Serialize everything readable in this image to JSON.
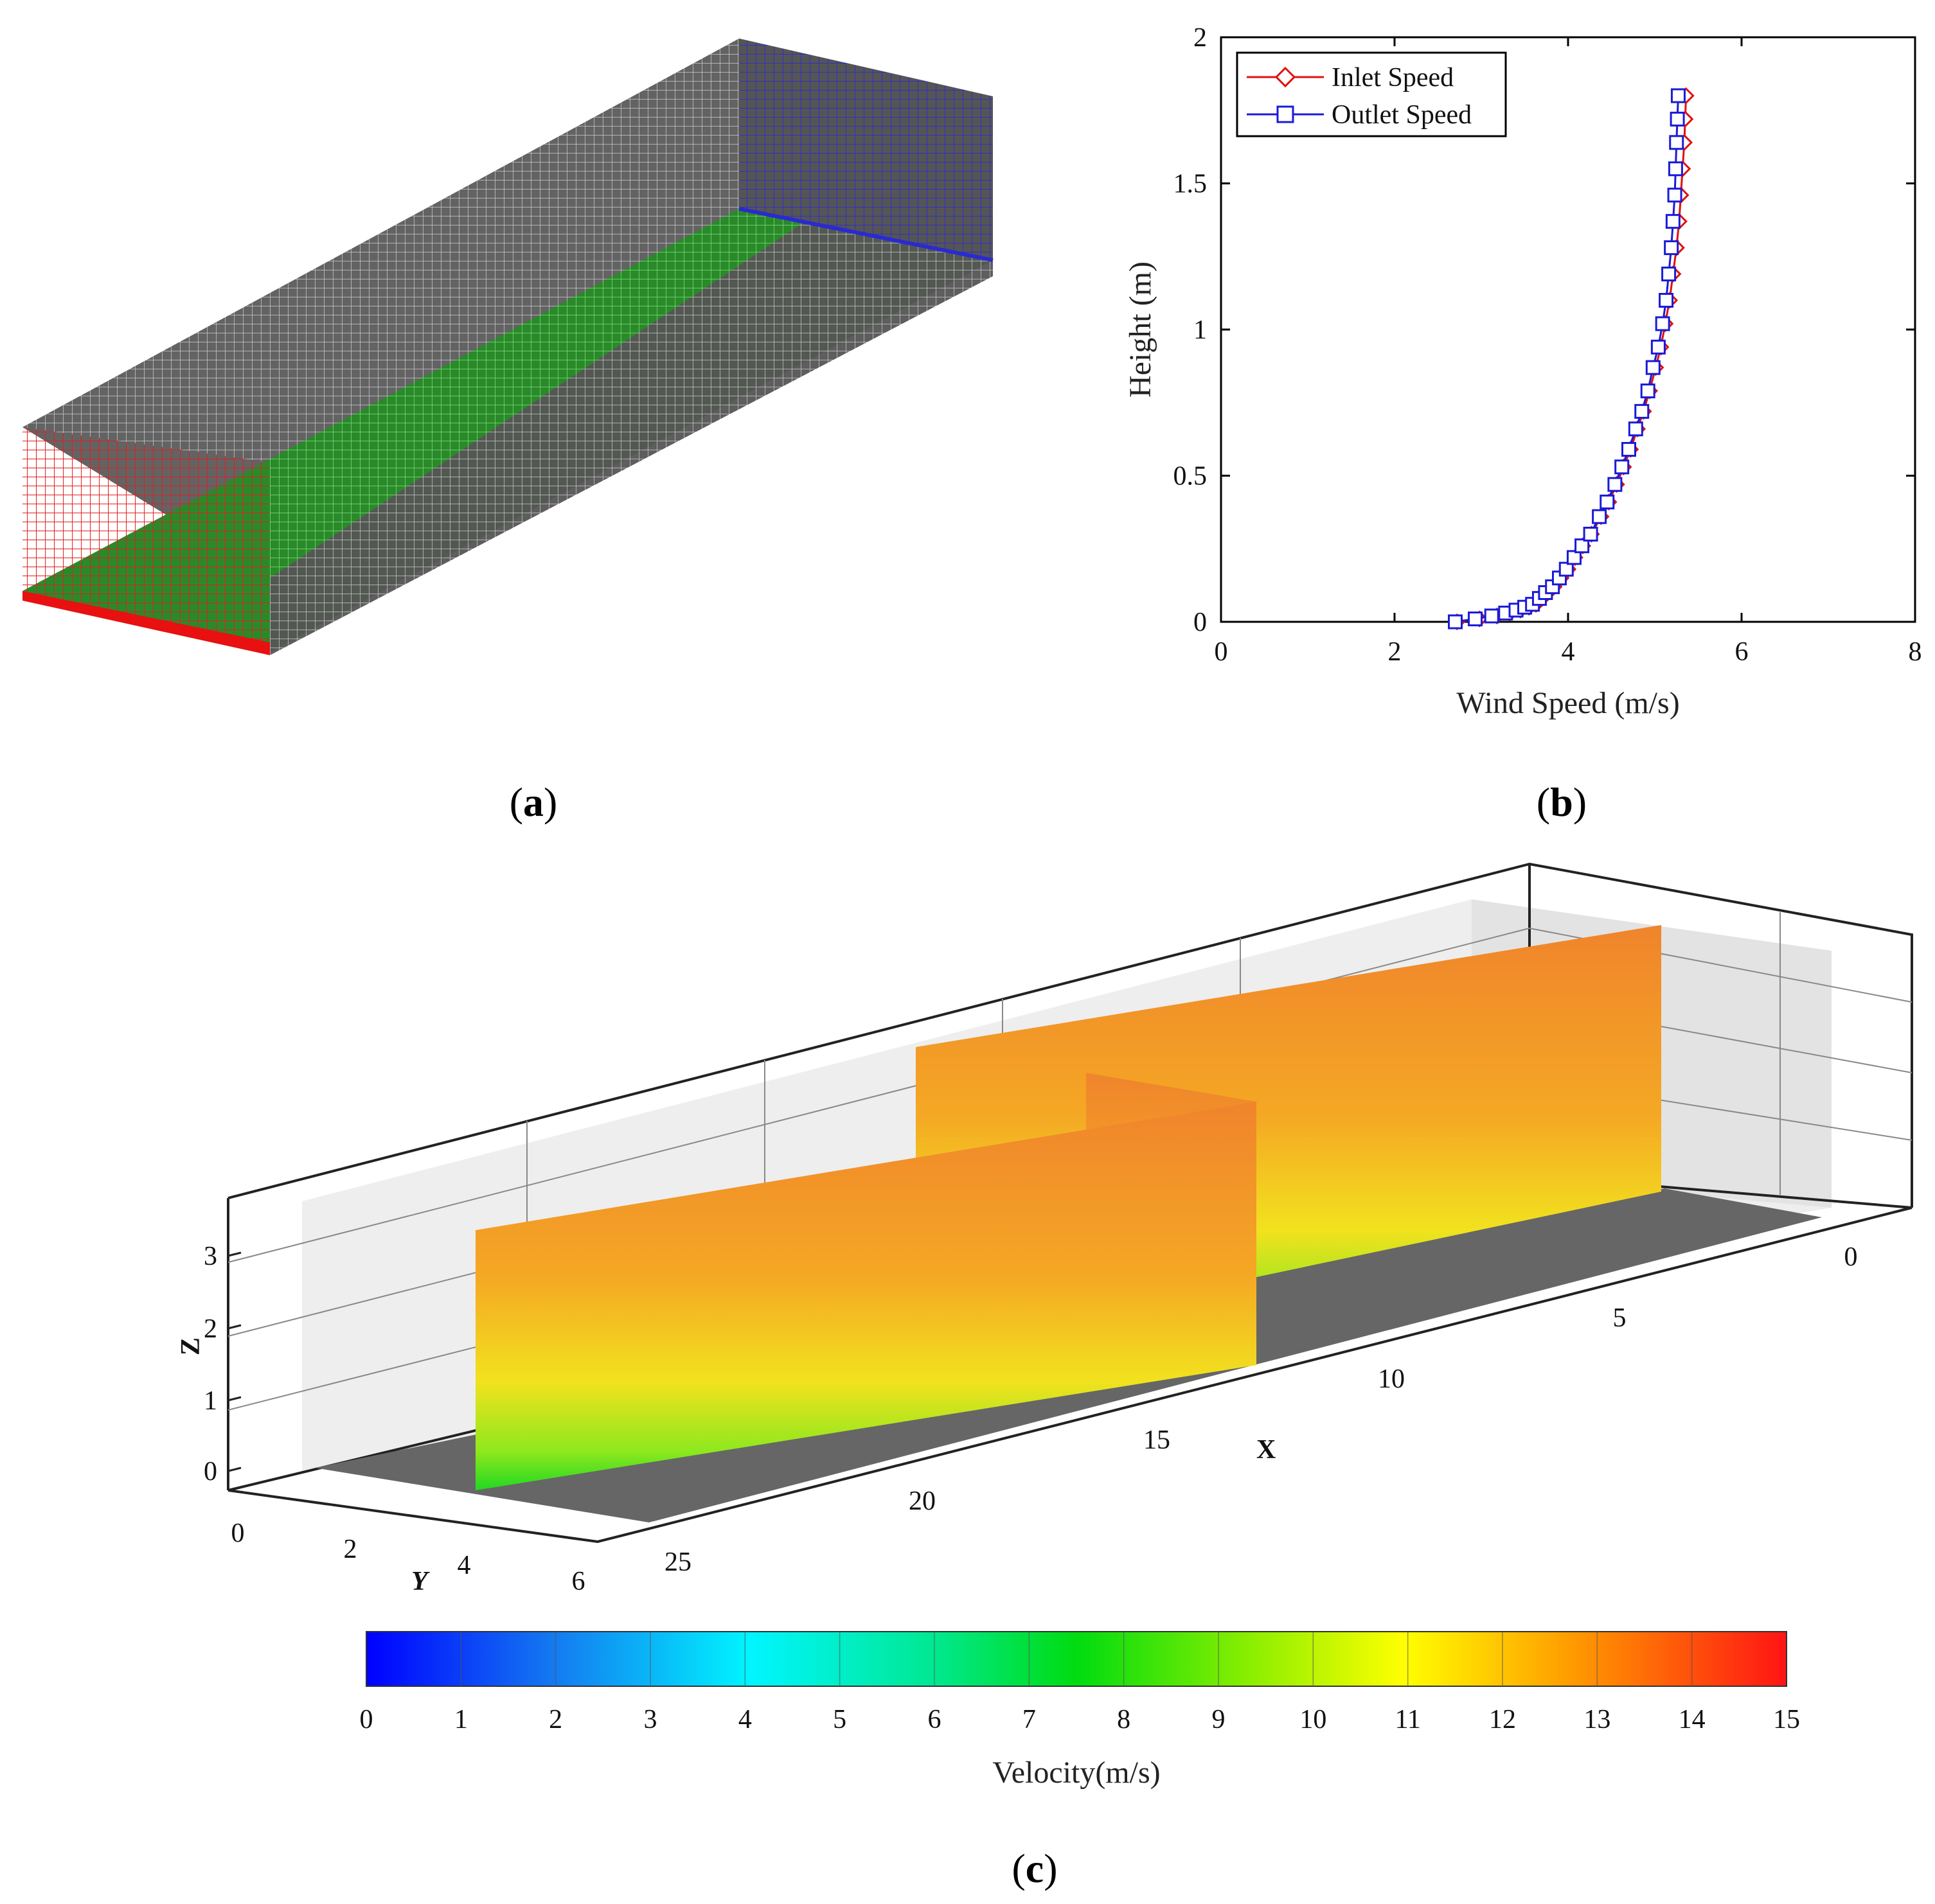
{
  "panels": {
    "a": {
      "label": "(a)",
      "label_letter": "a"
    },
    "b": {
      "label": "(b)",
      "label_letter": "b"
    },
    "c": {
      "label": "(c)",
      "label_letter": "c"
    }
  },
  "mesh": {
    "colors": {
      "top": "#555555",
      "side": "#555555",
      "floor": "#2fa02f",
      "inlet": "#e01010",
      "outlet": "#2c2cc8",
      "lines": "#d8d8d8"
    }
  },
  "chart_data": [
    {
      "type": "line",
      "xlabel": "Wind Speed (m/s)",
      "ylabel": "Height (m)",
      "xlim": [
        0,
        8
      ],
      "ylim": [
        0,
        2
      ],
      "xticks": [
        0,
        2,
        4,
        6,
        8
      ],
      "yticks": [
        0,
        0.5,
        1,
        1.5,
        2
      ],
      "xtick_labels": [
        "0",
        "2",
        "4",
        "6",
        "8"
      ],
      "ytick_labels": [
        "0",
        "0.5",
        "1",
        "1.5",
        "2"
      ],
      "legend_position": "top-left",
      "series": [
        {
          "name": "Inlet Speed",
          "color": "#e01010",
          "marker": "diamond",
          "x": [
            2.72,
            2.98,
            3.18,
            3.33,
            3.45,
            3.55,
            3.63,
            3.7,
            3.77,
            3.84,
            3.92,
            4.0,
            4.08,
            4.17,
            4.27,
            4.38,
            4.47,
            4.56,
            4.64,
            4.72,
            4.8,
            4.87,
            4.94,
            5.01,
            5.07,
            5.12,
            5.17,
            5.21,
            5.25,
            5.28,
            5.3,
            5.32,
            5.34,
            5.35,
            5.36
          ],
          "y": [
            0.0,
            0.01,
            0.02,
            0.03,
            0.04,
            0.05,
            0.06,
            0.08,
            0.1,
            0.12,
            0.15,
            0.18,
            0.22,
            0.26,
            0.3,
            0.36,
            0.41,
            0.47,
            0.53,
            0.59,
            0.66,
            0.72,
            0.79,
            0.87,
            0.94,
            1.02,
            1.1,
            1.19,
            1.28,
            1.37,
            1.46,
            1.55,
            1.64,
            1.72,
            1.8
          ]
        },
        {
          "name": "Outlet Speed",
          "color": "#1a1ad8",
          "marker": "square",
          "x": [
            2.7,
            2.93,
            3.12,
            3.28,
            3.4,
            3.5,
            3.59,
            3.67,
            3.74,
            3.82,
            3.9,
            3.98,
            4.07,
            4.16,
            4.26,
            4.36,
            4.45,
            4.54,
            4.62,
            4.7,
            4.78,
            4.85,
            4.92,
            4.98,
            5.04,
            5.09,
            5.13,
            5.16,
            5.19,
            5.21,
            5.23,
            5.24,
            5.25,
            5.26,
            5.27
          ],
          "y": [
            0.0,
            0.01,
            0.02,
            0.03,
            0.04,
            0.05,
            0.06,
            0.08,
            0.1,
            0.12,
            0.15,
            0.18,
            0.22,
            0.26,
            0.3,
            0.36,
            0.41,
            0.47,
            0.53,
            0.59,
            0.66,
            0.72,
            0.79,
            0.87,
            0.94,
            1.02,
            1.1,
            1.19,
            1.28,
            1.37,
            1.46,
            1.55,
            1.64,
            1.72,
            1.8
          ]
        }
      ]
    },
    {
      "type": "heatmap",
      "description_kind": "3d-contour",
      "axes": {
        "x": {
          "label": "X",
          "ticks": [
            "0",
            "5",
            "10",
            "15",
            "20",
            "25"
          ]
        },
        "y": {
          "label": "Y",
          "ticks": [
            "0",
            "2",
            "4",
            "6"
          ]
        },
        "z": {
          "label": "Z",
          "ticks": [
            "0",
            "1",
            "2",
            "3"
          ]
        }
      },
      "colorbar": {
        "label": "Velocity(m/s)",
        "range": [
          0,
          15
        ],
        "ticks": [
          "0",
          "1",
          "2",
          "3",
          "4",
          "5",
          "6",
          "7",
          "8",
          "9",
          "10",
          "11",
          "12",
          "13",
          "14",
          "15"
        ],
        "colors": [
          "#0000ff",
          "#0a5af0",
          "#1496f0",
          "#14c8f0",
          "#00f5f5",
          "#00f0b0",
          "#00e070",
          "#00dc28",
          "#00e000",
          "#64ec00",
          "#c8f000",
          "#ffff00",
          "#ffc800",
          "#ff9600",
          "#ff5a00",
          "#ff1e1e"
        ]
      },
      "plane_colors": {
        "top": "#f08a30",
        "mid": "#f4b020",
        "lower": "#f0e020",
        "bottom": "#40e020"
      },
      "floor_color": "#666666"
    }
  ]
}
